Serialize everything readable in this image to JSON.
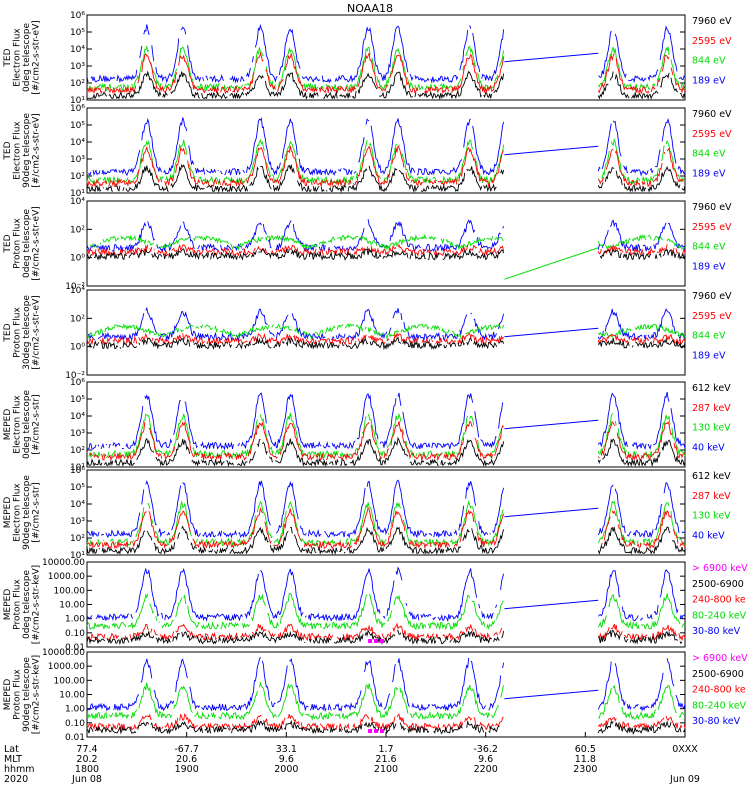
{
  "title": "NOAA18",
  "panels": [
    {
      "ylabel_lines": [
        "TED",
        "Electron Flux",
        "0deg telescope",
        "[#/cm2-s-str-eV]"
      ],
      "yticks": [
        "10¹",
        "10²",
        "10³",
        "10⁴",
        "10⁵",
        "10⁶"
      ],
      "legend": [
        {
          "label": "7960 eV",
          "color": "#000000"
        },
        {
          "label": "2595 eV",
          "color": "#ff0000"
        },
        {
          "label": "844 eV",
          "color": "#00dd00"
        },
        {
          "label": "189 eV",
          "color": "#0000ff"
        }
      ]
    },
    {
      "ylabel_lines": [
        "TED",
        "Electron Flux",
        "90deg telescope",
        "[#/cm2-s-str-eV]"
      ],
      "yticks": [
        "10¹",
        "10²",
        "10³",
        "10⁴",
        "10⁵",
        "10⁶"
      ],
      "legend": [
        {
          "label": "7960 eV",
          "color": "#000000"
        },
        {
          "label": "2595 eV",
          "color": "#ff0000"
        },
        {
          "label": "844 eV",
          "color": "#00dd00"
        },
        {
          "label": "189 eV",
          "color": "#0000ff"
        }
      ]
    },
    {
      "ylabel_lines": [
        "TED",
        "Proton Flux",
        "0deg telescope",
        "[#/cm2-s-str-eV]"
      ],
      "yticks": [
        "10⁻²",
        "10⁰",
        "10²",
        "10⁴"
      ],
      "legend": [
        {
          "label": "7960 eV",
          "color": "#000000"
        },
        {
          "label": "2595 eV",
          "color": "#ff0000"
        },
        {
          "label": "844 eV",
          "color": "#00dd00"
        },
        {
          "label": "189 eV",
          "color": "#0000ff"
        }
      ]
    },
    {
      "ylabel_lines": [
        "TED",
        "Proton Flux",
        "30deg telescope",
        "[#/cm2-s-str-eV]"
      ],
      "yticks": [
        "10⁻²",
        "10⁰",
        "10²",
        "10⁴"
      ],
      "legend": [
        {
          "label": "7960 eV",
          "color": "#000000"
        },
        {
          "label": "2595 eV",
          "color": "#ff0000"
        },
        {
          "label": "844 eV",
          "color": "#00dd00"
        },
        {
          "label": "189 eV",
          "color": "#0000ff"
        }
      ]
    },
    {
      "ylabel_lines": [
        "MEPED",
        "Electron Flux",
        "0deg telescope",
        "[#/cm2-s-str]"
      ],
      "yticks": [
        "10¹",
        "10²",
        "10³",
        "10⁴",
        "10⁵",
        "10⁶"
      ],
      "legend": [
        {
          "label": "612 keV",
          "color": "#000000"
        },
        {
          "label": "287 keV",
          "color": "#ff0000"
        },
        {
          "label": "130 keV",
          "color": "#00dd00"
        },
        {
          "label": "40 keV",
          "color": "#0000ff"
        }
      ]
    },
    {
      "ylabel_lines": [
        "MEPED",
        "Electron Flux",
        "90deg telescope",
        "[#/cm2-s-str]"
      ],
      "yticks": [
        "10¹",
        "10²",
        "10³",
        "10⁴",
        "10⁵",
        "10⁶"
      ],
      "legend": [
        {
          "label": "612 keV",
          "color": "#000000"
        },
        {
          "label": "287 keV",
          "color": "#ff0000"
        },
        {
          "label": "130 keV",
          "color": "#00dd00"
        },
        {
          "label": "40 keV",
          "color": "#0000ff"
        }
      ]
    },
    {
      "ylabel_lines": [
        "MEPED",
        "Proton Flux",
        "0deg telescope",
        "[#/cm2-s-str-keV]"
      ],
      "yticks": [
        "0.01",
        "0.10",
        "1.00",
        "10.00",
        "100.00",
        "1000.00",
        "10000.00"
      ],
      "legend": [
        {
          "label": "> 6900 keV",
          "color": "#ff00ff"
        },
        {
          "label": "2500-6900",
          "color": "#000000"
        },
        {
          "label": "240-800 ke",
          "color": "#ff0000"
        },
        {
          "label": "80-240 keV",
          "color": "#00dd00"
        },
        {
          "label": "30-80 keV",
          "color": "#0000ff"
        }
      ]
    },
    {
      "ylabel_lines": [
        "MEPED",
        "Proton Flux",
        "90deg telescope",
        "[#/cm2-s-str-keV]"
      ],
      "yticks": [
        "0.01",
        "0.10",
        "1.00",
        "10.00",
        "100.00",
        "1000.00",
        "10000.00"
      ],
      "legend": [
        {
          "label": "> 6900 keV",
          "color": "#ff00ff"
        },
        {
          "label": "2500-6900",
          "color": "#000000"
        },
        {
          "label": "240-800 ke",
          "color": "#ff0000"
        },
        {
          "label": "80-240 keV",
          "color": "#00dd00"
        },
        {
          "label": "30-80 keV",
          "color": "#0000ff"
        }
      ]
    }
  ],
  "xaxis": {
    "row_labels": [
      "Lat",
      "MLT",
      "hhmm",
      "2020"
    ],
    "ticks": [
      {
        "lat": "77.4",
        "mlt": "20.2",
        "time": "1800",
        "date": "Jun 08"
      },
      {
        "lat": "-67.7",
        "mlt": "20.6",
        "time": "1900",
        "date": ""
      },
      {
        "lat": "33.1",
        "mlt": "9.6",
        "time": "2000",
        "date": ""
      },
      {
        "lat": "1.7",
        "mlt": "21.6",
        "time": "2100",
        "date": ""
      },
      {
        "lat": "-36.2",
        "mlt": "9.6",
        "time": "2200",
        "date": ""
      },
      {
        "lat": "60.5",
        "mlt": "11.8",
        "time": "2300",
        "date": ""
      },
      {
        "lat": "0XXX",
        "mlt": "",
        "time": "",
        "date": "Jun 09"
      }
    ]
  },
  "chart_data": {
    "type": "line",
    "title": "NOAA18",
    "x_range": [
      "1800",
      "0000"
    ],
    "data_gap": [
      "2200",
      "2300"
    ],
    "series_colors": {
      "black": "#000000",
      "red": "#ff0000",
      "green": "#00dd00",
      "blue": "#0000ff",
      "magenta": "#ff00ff"
    }
  }
}
